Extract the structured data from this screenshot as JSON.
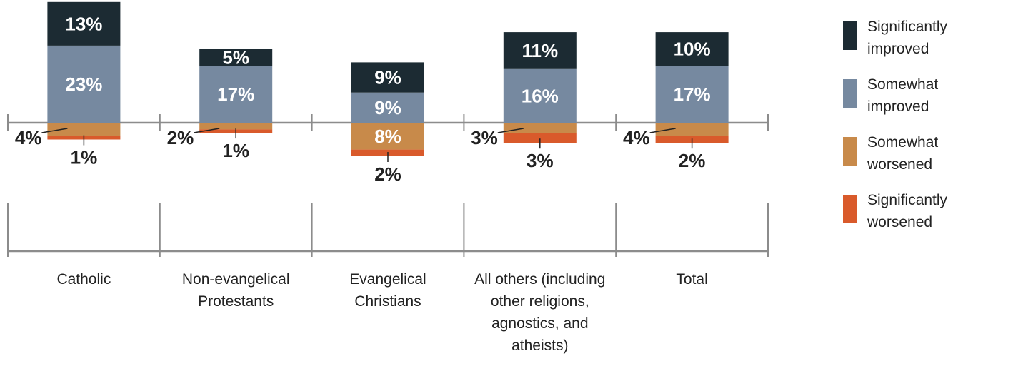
{
  "chart_data": {
    "type": "bar",
    "stacked": "diverging",
    "categories": [
      [
        "Catholic"
      ],
      [
        "Non-evangelical",
        "Protestants"
      ],
      [
        "Evangelical",
        "Christians"
      ],
      [
        "All others (including",
        "other religions,",
        "agnostics, and",
        "atheists)"
      ],
      [
        "Total"
      ]
    ],
    "series": [
      {
        "name": "Significantly improved",
        "legend_lines": [
          "Significantly",
          "improved"
        ],
        "color": "#1c2b33",
        "direction": "up",
        "values": [
          13,
          5,
          9,
          11,
          10
        ],
        "labels": [
          "13%",
          "5%",
          "9%",
          "11%",
          "10%"
        ]
      },
      {
        "name": "Somewhat improved",
        "legend_lines": [
          "Somewhat",
          "improved"
        ],
        "color": "#7689a0",
        "direction": "up",
        "values": [
          23,
          17,
          9,
          16,
          17
        ],
        "labels": [
          "23%",
          "17%",
          "9%",
          "16%",
          "17%"
        ]
      },
      {
        "name": "Somewhat worsened",
        "legend_lines": [
          "Somewhat",
          "worsened"
        ],
        "color": "#c88a4a",
        "direction": "down",
        "values": [
          4,
          2,
          8,
          3,
          4
        ],
        "labels": [
          "4%",
          "2%",
          "8%",
          "3%",
          "4%"
        ]
      },
      {
        "name": "Significantly worsened",
        "legend_lines": [
          "Significantly",
          "worsened"
        ],
        "color": "#d95a2b",
        "direction": "down",
        "values": [
          1,
          1,
          2,
          3,
          2
        ],
        "labels": [
          "1%",
          "1%",
          "2%",
          "3%",
          "2%"
        ]
      }
    ],
    "legend_position": "right",
    "colors": {
      "axis": "#8c8c8c",
      "text": "#222222",
      "inner_label": "#ffffff"
    }
  }
}
